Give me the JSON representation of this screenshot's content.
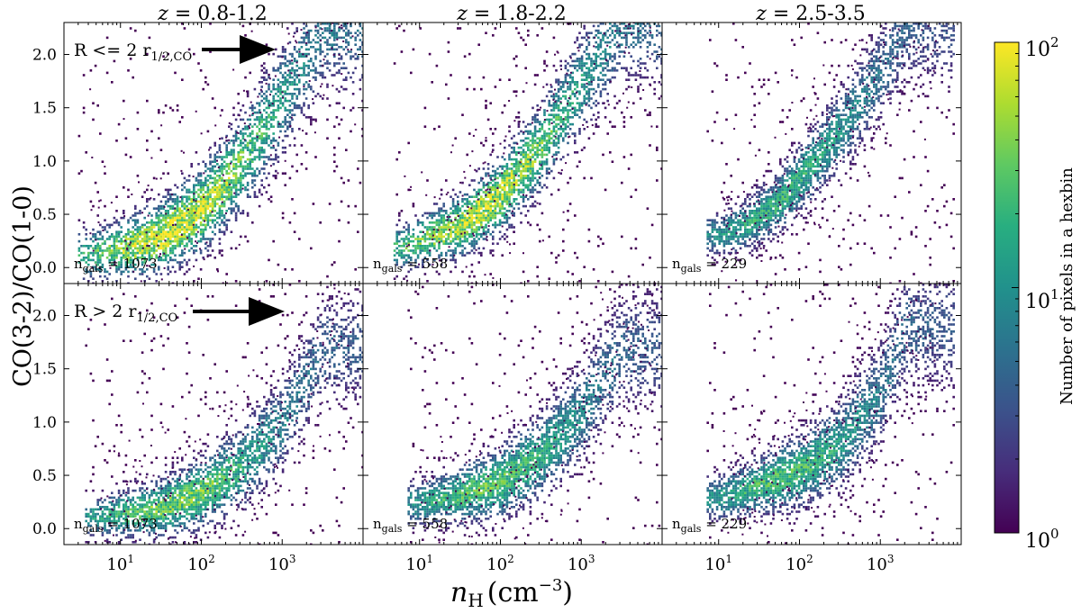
{
  "figure": {
    "ylabel": "CO(3-2)/CO(1-0)",
    "xlabel_main": "n",
    "xlabel_sub": "H",
    "xlabel_unit_open": "(cm",
    "xlabel_unit_exp": "−3",
    "xlabel_unit_close": ")",
    "colorbar": {
      "label": "Number of pixels in a hexbin",
      "scale": "log",
      "range": [
        1,
        100
      ],
      "colormap": "viridis",
      "ticks": [
        {
          "base": "10",
          "exp": "0",
          "value": 1
        },
        {
          "base": "10",
          "exp": "1",
          "value": 10
        },
        {
          "base": "10",
          "exp": "2",
          "value": 100
        }
      ]
    },
    "row_labels": [
      {
        "text": "R <= 2 r",
        "sub": "1/2,CO"
      },
      {
        "text": "R > 2 r",
        "sub": "1/2,CO"
      }
    ],
    "column_titles": [
      {
        "z": "z",
        "rest": " = 0.8-1.2"
      },
      {
        "z": "z",
        "rest": " = 1.8-2.2"
      },
      {
        "z": "z",
        "rest": " = 2.5-3.5"
      }
    ],
    "ngal_labels": [
      {
        "n": "n",
        "sub": "gals",
        "rest": " = 1073"
      },
      {
        "n": "n",
        "sub": "gals",
        "rest": " = 558"
      },
      {
        "n": "n",
        "sub": "gals",
        "rest": " = 229"
      }
    ],
    "y_tick_labels": [
      "0.0",
      "0.5",
      "1.0",
      "1.5",
      "2.0"
    ],
    "x_tick_labels": [
      {
        "base": "10",
        "exp": "1"
      },
      {
        "base": "10",
        "exp": "2"
      },
      {
        "base": "10",
        "exp": "3"
      }
    ]
  },
  "chart_data": {
    "type": "heatmap",
    "subtype": "hexbin-grid",
    "x_scale": "log",
    "xlim": [
      2,
      10000
    ],
    "ylim": [
      -0.15,
      2.3
    ],
    "y_ticks": [
      0.0,
      0.5,
      1.0,
      1.5,
      2.0
    ],
    "x_ticks": [
      10,
      100,
      1000
    ],
    "panels": [
      {
        "row": 0,
        "col": 0,
        "density_ridge": {
          "log_x": [
            0.6,
            1.0,
            1.5,
            2.0,
            2.5,
            3.0,
            3.5
          ],
          "y": [
            0.13,
            0.18,
            0.3,
            0.55,
            1.0,
            1.6,
            2.25
          ]
        },
        "spread": 0.14,
        "peak_count": 100,
        "n_gals": 1073
      },
      {
        "row": 0,
        "col": 1,
        "density_ridge": {
          "log_x": [
            0.8,
            1.0,
            1.5,
            2.0,
            2.5,
            3.0,
            3.5
          ],
          "y": [
            0.2,
            0.27,
            0.4,
            0.7,
            1.15,
            1.75,
            2.3
          ]
        },
        "spread": 0.13,
        "peak_count": 80,
        "n_gals": 558
      },
      {
        "row": 0,
        "col": 2,
        "density_ridge": {
          "log_x": [
            1.0,
            1.3,
            1.7,
            2.0,
            2.5,
            3.0,
            3.3
          ],
          "y": [
            0.32,
            0.4,
            0.6,
            0.85,
            1.3,
            1.85,
            2.25
          ]
        },
        "spread": 0.12,
        "peak_count": 20,
        "n_gals": 229
      },
      {
        "row": 1,
        "col": 0,
        "density_ridge": {
          "log_x": [
            0.7,
            1.0,
            1.5,
            2.0,
            2.5,
            3.0,
            3.5
          ],
          "y": [
            0.12,
            0.15,
            0.2,
            0.35,
            0.6,
            1.0,
            1.7
          ]
        },
        "spread": 0.12,
        "peak_count": 40,
        "n_gals": 1073
      },
      {
        "row": 1,
        "col": 1,
        "density_ridge": {
          "log_x": [
            1.0,
            1.5,
            2.0,
            2.5,
            3.0,
            3.5
          ],
          "y": [
            0.25,
            0.33,
            0.45,
            0.7,
            1.1,
            1.7
          ]
        },
        "spread": 0.13,
        "peak_count": 30,
        "n_gals": 558
      },
      {
        "row": 1,
        "col": 2,
        "density_ridge": {
          "log_x": [
            1.0,
            1.5,
            2.0,
            2.5,
            3.0,
            3.3
          ],
          "y": [
            0.3,
            0.42,
            0.55,
            0.8,
            1.3,
            1.9
          ]
        },
        "spread": 0.13,
        "peak_count": 25,
        "n_gals": 229
      }
    ]
  }
}
